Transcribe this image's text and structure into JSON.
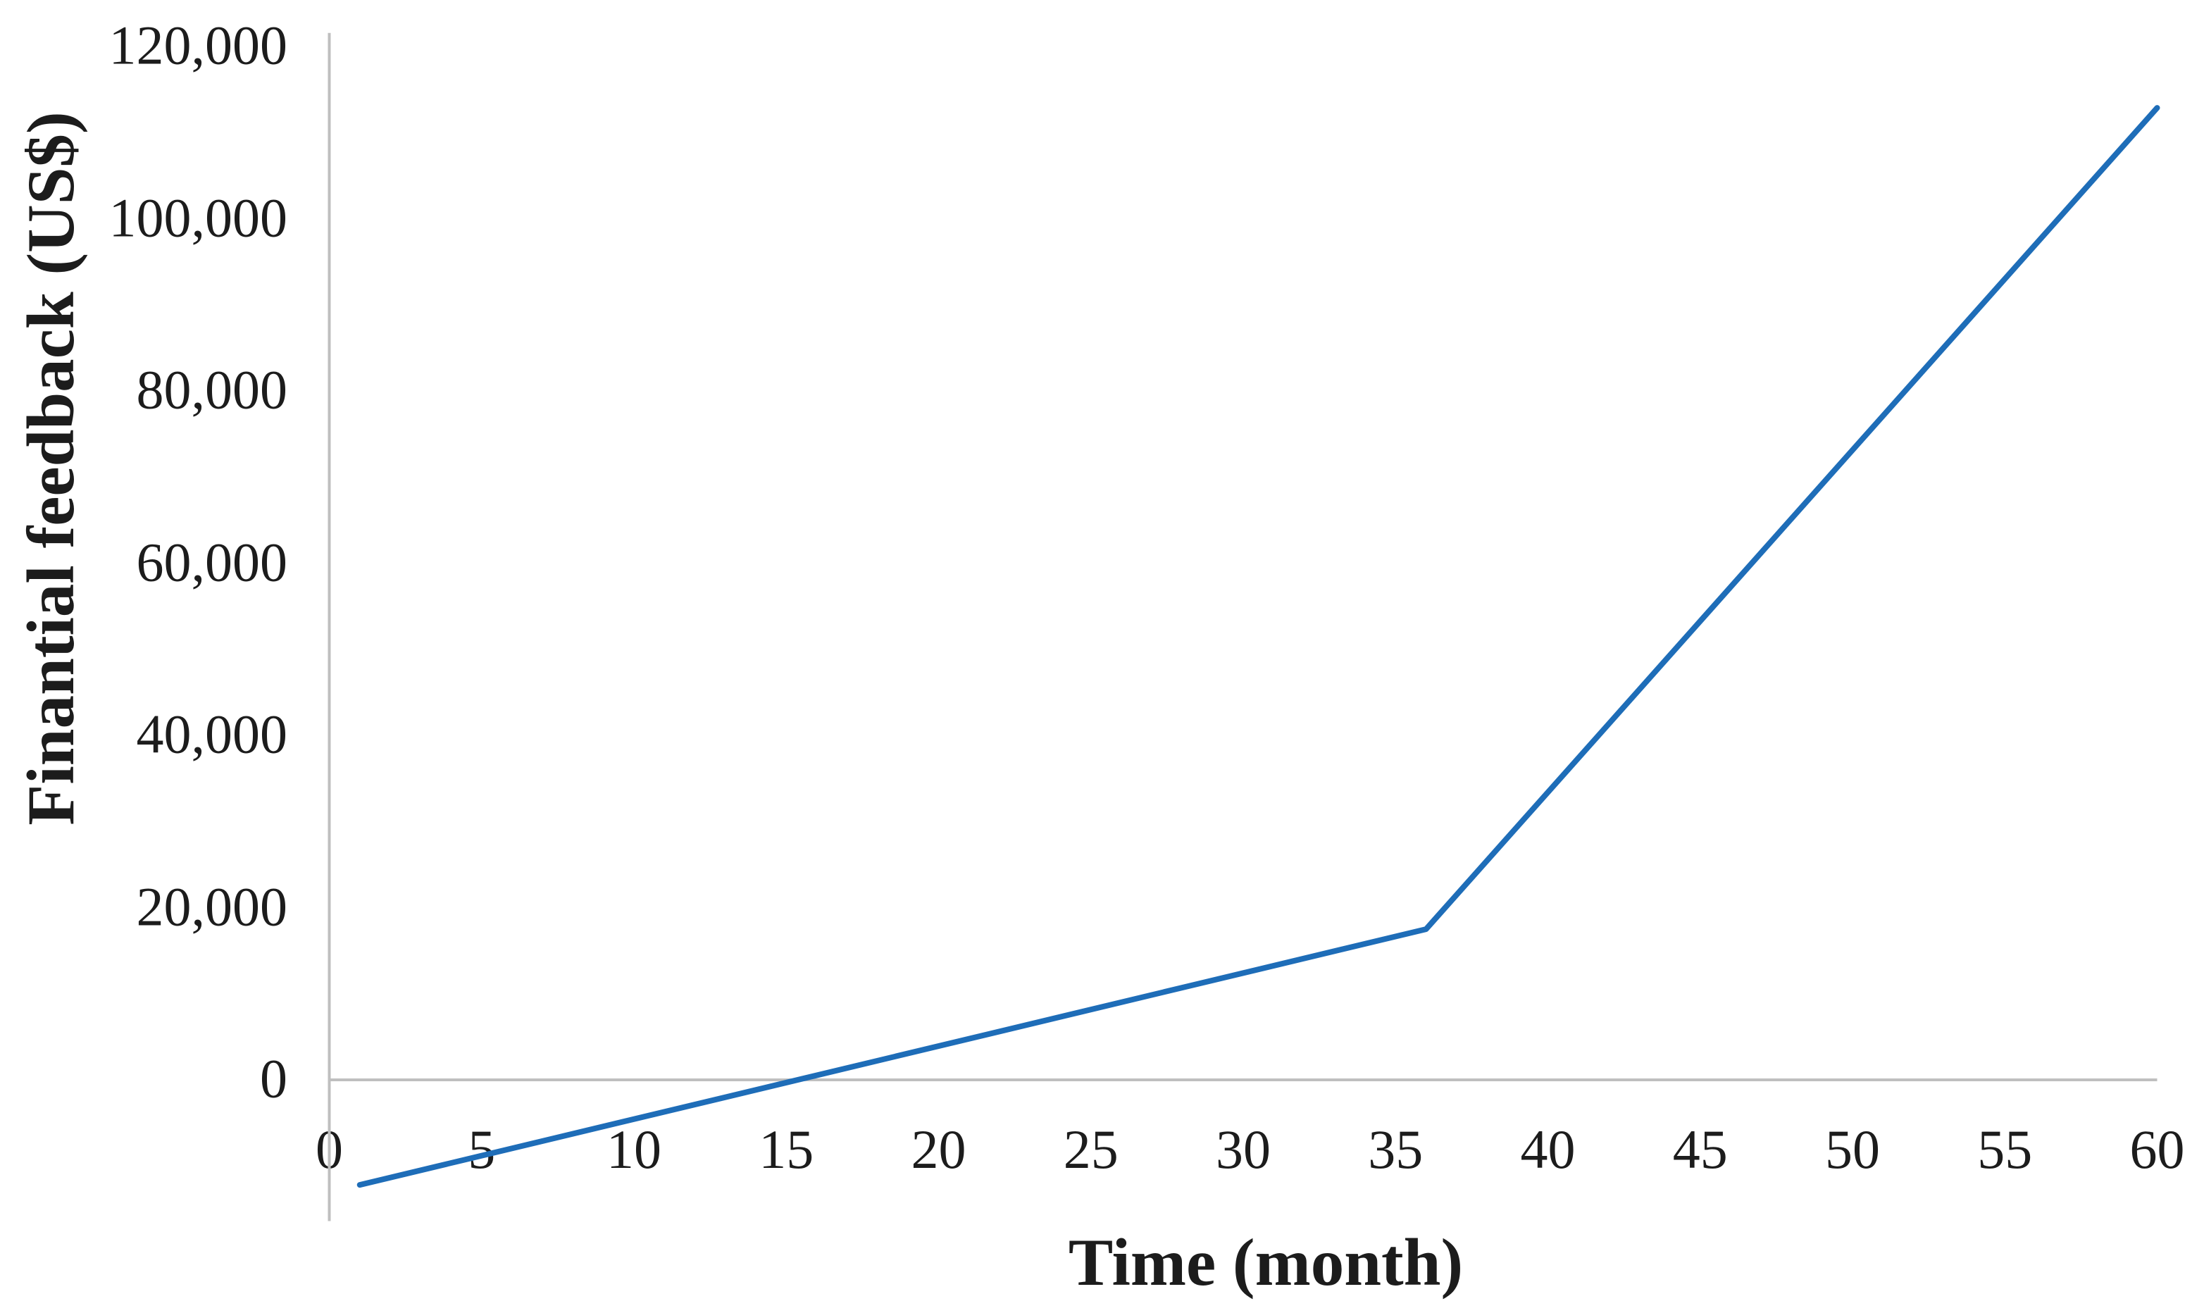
{
  "chart_data": {
    "type": "line",
    "title": "",
    "xlabel": "Time (month)",
    "ylabel": "Finantial feedback (US$)",
    "series": [
      {
        "name": "Finantial feedback",
        "x": [
          1,
          36,
          60
        ],
        "y": [
          -12200,
          17500,
          112900
        ]
      }
    ],
    "x_ticks": [
      0,
      5,
      10,
      15,
      20,
      25,
      30,
      35,
      40,
      45,
      50,
      55,
      60
    ],
    "y_ticks": [
      0,
      20000,
      40000,
      60000,
      80000,
      100000,
      120000
    ],
    "y_tick_labels": [
      "0",
      "20,000",
      "40,000",
      "60,000",
      "80,000",
      "100,000",
      "120,000"
    ],
    "x_tick_labels": [
      "0",
      "5",
      "10",
      "15",
      "20",
      "25",
      "30",
      "35",
      "40",
      "45",
      "50",
      "55",
      "60"
    ],
    "xlim": [
      0,
      60
    ],
    "ylim": [
      -16400,
      121600
    ],
    "grid": "horizontal zero line only",
    "legend_position": "none",
    "annotations": [
      "line starts below zero at month 1",
      "slope increases after month 36 (kink point)",
      "zero-crossing near month 15"
    ],
    "colors": {
      "line_color": "#1e6db8",
      "axis_color": "#bfbfbf",
      "text_color": "#1c1c1c",
      "background": "#ffffff"
    }
  }
}
